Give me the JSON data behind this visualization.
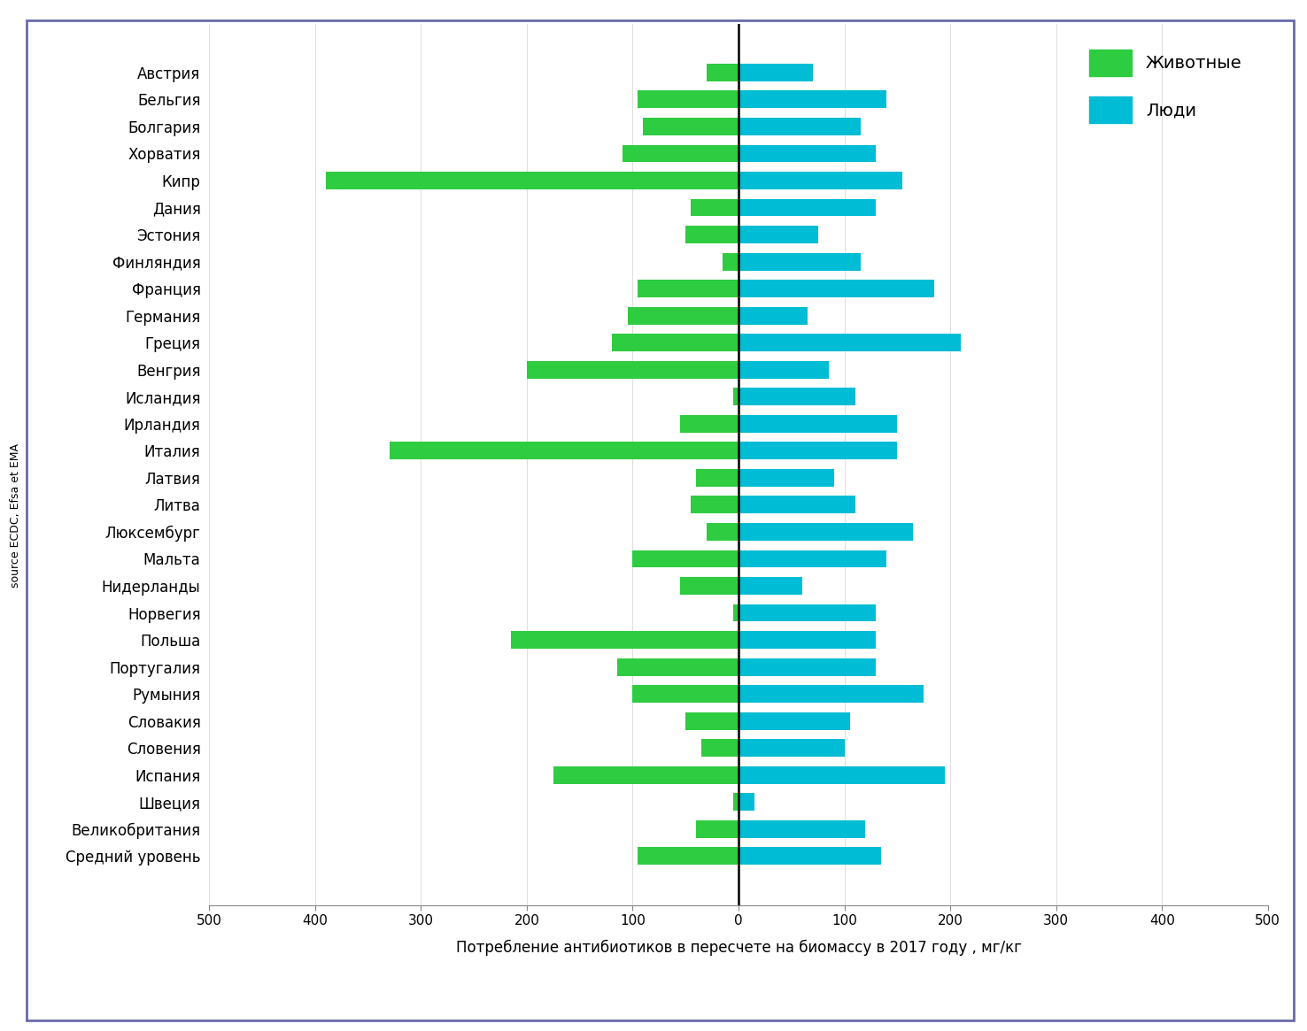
{
  "countries": [
    "Австрия",
    "Бельгия",
    "Болгария",
    "Хорватия",
    "Кипр",
    "Дания",
    "Эстония",
    "Финляндия",
    "Франция",
    "Германия",
    "Греция",
    "Венгрия",
    "Исландия",
    "Ирландия",
    "Италия",
    "Латвия",
    "Литва",
    "Люксембург",
    "Мальта",
    "Нидерланды",
    "Норвегия",
    "Польша",
    "Португалия",
    "Румыния",
    "Словакия",
    "Словения",
    "Испания",
    "Швеция",
    "Великобритания",
    "Средний уровень"
  ],
  "animals": [
    -30,
    -95,
    -90,
    -110,
    -390,
    -45,
    -50,
    -15,
    -95,
    -105,
    -120,
    -200,
    -5,
    -55,
    -330,
    -40,
    -45,
    -30,
    -100,
    -55,
    -5,
    -215,
    -115,
    -100,
    -50,
    -35,
    -175,
    -5,
    -40,
    -95
  ],
  "humans": [
    70,
    140,
    115,
    130,
    155,
    130,
    75,
    115,
    185,
    65,
    210,
    85,
    110,
    150,
    150,
    90,
    110,
    165,
    140,
    60,
    130,
    130,
    130,
    175,
    105,
    100,
    195,
    15,
    120,
    135
  ],
  "animal_color": "#2ecc40",
  "human_color": "#00bcd4",
  "animal_label": "Животные",
  "human_label": "Люди",
  "xlabel": "Потребление антибиотиков в пересчете на биомассу в 2017 году , мг/кг",
  "xlim": [
    -500,
    500
  ],
  "xticks": [
    -500,
    -400,
    -300,
    -200,
    -100,
    0,
    100,
    200,
    300,
    400,
    500
  ],
  "xticklabels": [
    "500",
    "400",
    "300",
    "200",
    "100",
    "0",
    "100",
    "200",
    "300",
    "400",
    "500"
  ],
  "source_text": "source ECDC, Efsa et EMA",
  "background_color": "#ffffff",
  "border_color": "#6a6aaa"
}
